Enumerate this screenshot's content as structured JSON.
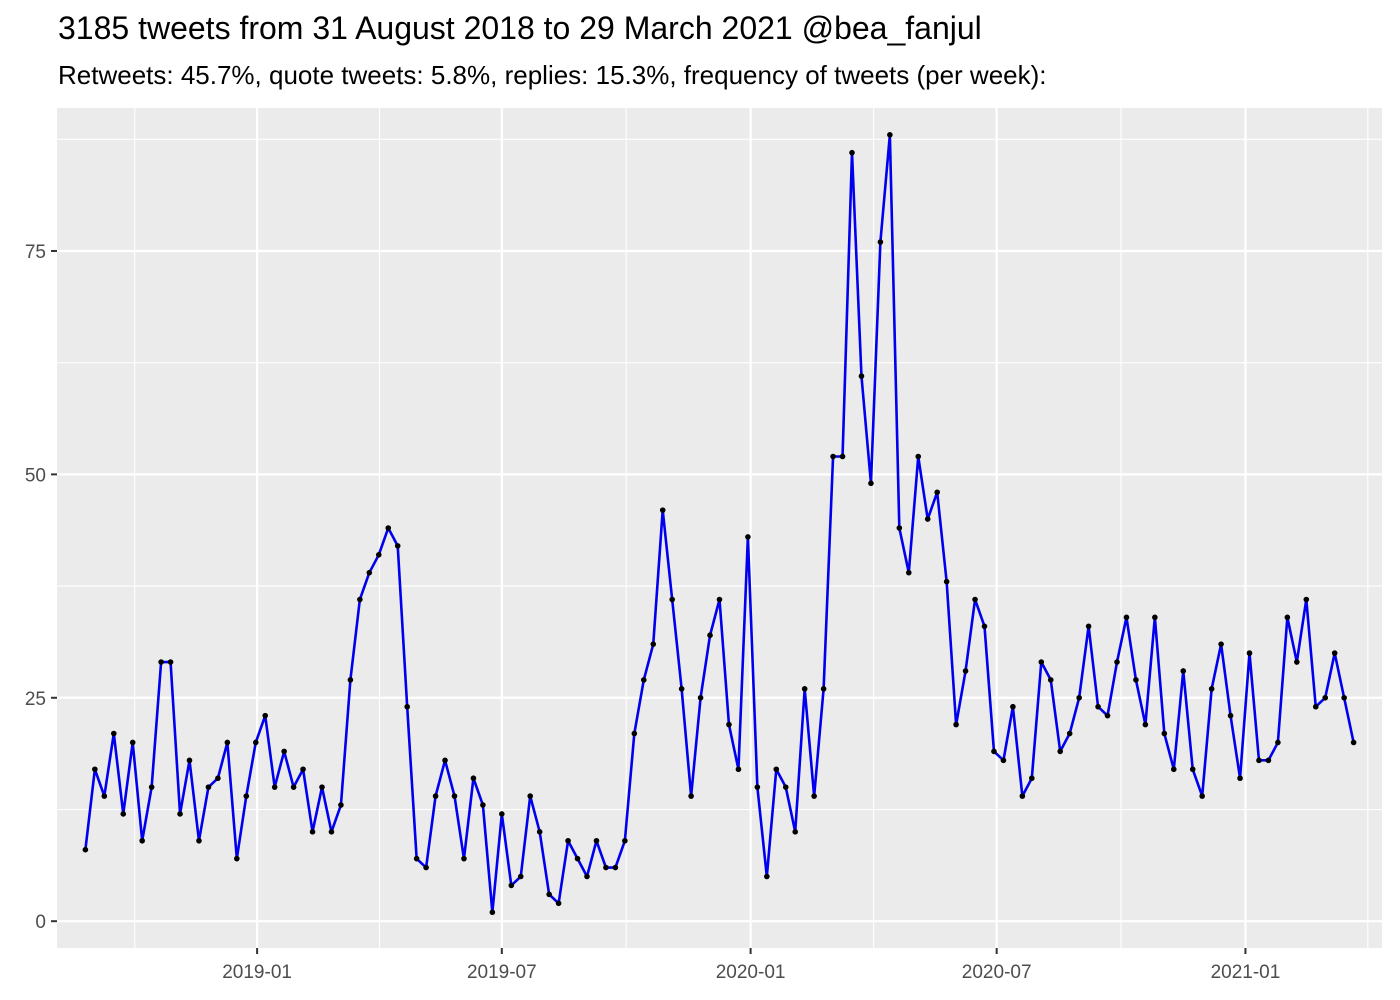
{
  "chart_data": {
    "type": "line",
    "title": "3185 tweets from 31 August 2018 to 29 March 2021 @bea_fanjul",
    "subtitle": "Retweets: 45.7%, quote tweets: 5.8%, replies: 15.3%, frequency of tweets (per week):",
    "xlabel": "",
    "ylabel": "",
    "x_ticks": [
      "2019-01",
      "2019-07",
      "2020-01",
      "2020-07",
      "2021-01"
    ],
    "y_ticks": [
      0,
      25,
      50,
      75
    ],
    "ylim": [
      -3,
      91
    ],
    "xlim": [
      "2018-08-06",
      "2021-04-12"
    ],
    "grid": true,
    "line_color": "#0000ee",
    "point_color": "#000000",
    "panel_color": "#ebebeb",
    "x": [
      "2018-08-27",
      "2018-09-03",
      "2018-09-10",
      "2018-09-17",
      "2018-09-24",
      "2018-10-01",
      "2018-10-08",
      "2018-10-15",
      "2018-10-22",
      "2018-10-29",
      "2018-11-05",
      "2018-11-12",
      "2018-11-19",
      "2018-11-26",
      "2018-12-03",
      "2018-12-10",
      "2018-12-17",
      "2018-12-24",
      "2018-12-31",
      "2019-01-07",
      "2019-01-14",
      "2019-01-21",
      "2019-01-28",
      "2019-02-04",
      "2019-02-11",
      "2019-02-18",
      "2019-02-25",
      "2019-03-04",
      "2019-03-11",
      "2019-03-18",
      "2019-03-25",
      "2019-04-01",
      "2019-04-08",
      "2019-04-15",
      "2019-04-22",
      "2019-04-29",
      "2019-05-06",
      "2019-05-13",
      "2019-05-20",
      "2019-05-27",
      "2019-06-03",
      "2019-06-10",
      "2019-06-17",
      "2019-06-24",
      "2019-07-01",
      "2019-07-08",
      "2019-07-15",
      "2019-07-22",
      "2019-07-29",
      "2019-08-05",
      "2019-08-12",
      "2019-08-19",
      "2019-08-26",
      "2019-09-02",
      "2019-09-09",
      "2019-09-16",
      "2019-09-23",
      "2019-09-30",
      "2019-10-07",
      "2019-10-14",
      "2019-10-21",
      "2019-10-28",
      "2019-11-04",
      "2019-11-11",
      "2019-11-18",
      "2019-11-25",
      "2019-12-02",
      "2019-12-09",
      "2019-12-16",
      "2019-12-23",
      "2019-12-30",
      "2020-01-06",
      "2020-01-13",
      "2020-01-20",
      "2020-01-27",
      "2020-02-03",
      "2020-02-10",
      "2020-02-17",
      "2020-02-24",
      "2020-03-02",
      "2020-03-09",
      "2020-03-16",
      "2020-03-23",
      "2020-03-30",
      "2020-04-06",
      "2020-04-13",
      "2020-04-20",
      "2020-04-27",
      "2020-05-04",
      "2020-05-11",
      "2020-05-18",
      "2020-05-25",
      "2020-06-01",
      "2020-06-08",
      "2020-06-15",
      "2020-06-22",
      "2020-06-29",
      "2020-07-06",
      "2020-07-13",
      "2020-07-20",
      "2020-07-27",
      "2020-08-03",
      "2020-08-10",
      "2020-08-17",
      "2020-08-24",
      "2020-08-31",
      "2020-09-07",
      "2020-09-14",
      "2020-09-21",
      "2020-09-28",
      "2020-10-05",
      "2020-10-12",
      "2020-10-19",
      "2020-10-26",
      "2020-11-02",
      "2020-11-09",
      "2020-11-16",
      "2020-11-23",
      "2020-11-30",
      "2020-12-07",
      "2020-12-14",
      "2020-12-21",
      "2020-12-28",
      "2021-01-04",
      "2021-01-11",
      "2021-01-18",
      "2021-01-25",
      "2021-02-01",
      "2021-02-08",
      "2021-02-15",
      "2021-02-22",
      "2021-03-01",
      "2021-03-08",
      "2021-03-15",
      "2021-03-22"
    ],
    "series": [
      {
        "values": [
          8,
          17,
          14,
          21,
          12,
          20,
          9,
          15,
          29,
          29,
          12,
          18,
          9,
          15,
          16,
          20,
          7,
          14,
          20,
          23,
          15,
          19,
          15,
          17,
          10,
          15,
          10,
          13,
          27,
          36,
          39,
          41,
          44,
          42,
          24,
          7,
          6,
          14,
          18,
          14,
          7,
          16,
          13,
          1,
          12,
          4,
          5,
          14,
          10,
          3,
          2,
          9,
          7,
          5,
          9,
          6,
          6,
          9,
          21,
          27,
          31,
          46,
          36,
          26,
          14,
          25,
          32,
          36,
          22,
          17,
          43,
          15,
          5,
          17,
          15,
          10,
          26,
          14,
          26,
          52,
          52,
          86,
          61,
          49,
          76,
          88,
          44,
          39,
          52,
          45,
          48,
          38,
          22,
          28,
          36,
          33,
          19,
          18,
          24,
          14,
          16,
          29,
          27,
          19,
          21,
          25,
          33,
          24,
          23,
          29,
          34,
          27,
          22,
          34,
          21,
          17,
          28,
          17,
          14,
          26,
          31,
          23,
          16,
          30,
          18,
          18,
          20,
          34,
          29,
          36,
          24,
          25,
          30,
          25,
          20
        ]
      }
    ]
  }
}
